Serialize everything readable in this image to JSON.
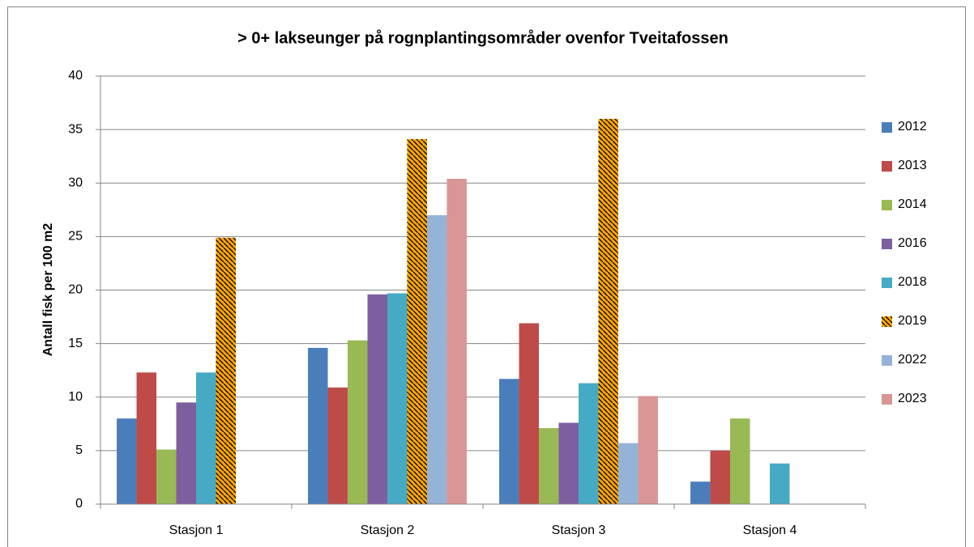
{
  "chart_data": {
    "type": "bar",
    "title": "> 0+ lakseunger på rognplantingsområder ovenfor Tveitafossen",
    "y_label": "Antall fisk per 100 m2",
    "categories": [
      "Stasjon 1",
      "Stasjon 2",
      "Stasjon 3",
      "Stasjon 4"
    ],
    "series": [
      {
        "name": "2012",
        "color": "#4a7ebb",
        "values": [
          8.0,
          14.6,
          11.7,
          2.1
        ]
      },
      {
        "name": "2013",
        "color": "#be4b48",
        "values": [
          12.3,
          10.9,
          16.9,
          5.0
        ]
      },
      {
        "name": "2014",
        "color": "#98b954",
        "values": [
          5.1,
          15.3,
          7.1,
          8.0
        ]
      },
      {
        "name": "2016",
        "color": "#7d5fa0",
        "values": [
          9.5,
          19.6,
          7.6,
          null
        ]
      },
      {
        "name": "2018",
        "color": "#46aac5",
        "values": [
          12.3,
          19.7,
          11.3,
          3.8
        ]
      },
      {
        "name": "2019",
        "color": "#ffa500",
        "hatch": true,
        "values": [
          24.9,
          34.1,
          36.0,
          null
        ]
      },
      {
        "name": "2022",
        "color": "#95b3d7",
        "values": [
          null,
          27.0,
          5.7,
          null
        ]
      },
      {
        "name": "2023",
        "color": "#d99694",
        "values": [
          null,
          30.4,
          10.1,
          null
        ]
      }
    ],
    "ylim": [
      0,
      40
    ],
    "yticks": [
      0,
      5,
      10,
      15,
      20,
      25,
      30,
      35,
      40
    ],
    "grid": true,
    "legend": "right"
  }
}
